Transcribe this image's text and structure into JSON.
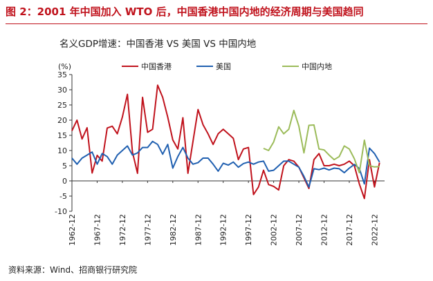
{
  "figure": {
    "title": "图 2：2001 年中国加入 WTO 后，中国香港中国内地的经济周期与美国趋同",
    "source": "资料来源：Wind、招商银行研究院"
  },
  "colors": {
    "title": "#c0121c",
    "hk": "#c0121c",
    "us": "#1f5fb0",
    "cn": "#9bbb59",
    "axis": "#333333"
  },
  "chart_data": {
    "type": "line",
    "title": "名义GDP增速：中国香港 VS 美国 VS 中国内地",
    "ylabel": "(%)",
    "ylim": [
      -10,
      35
    ],
    "yticks": [
      "-10",
      "-5",
      "0",
      "5",
      "10",
      "15",
      "20",
      "25",
      "30",
      "35"
    ],
    "xlim": [
      1962,
      2024
    ],
    "xtick_labels": [
      "1962-12",
      "1967-12",
      "1972-12",
      "1977-12",
      "1982-12",
      "1987-12",
      "1992-12",
      "1997-12",
      "2002-12",
      "2007-12",
      "2012-12",
      "2017-12",
      "2022-12"
    ],
    "grid": false,
    "legend": "top",
    "series": [
      {
        "name": "中国香港",
        "color": "#c0121c",
        "x": [
          1962,
          1963,
          1964,
          1965,
          1966,
          1967,
          1968,
          1969,
          1970,
          1971,
          1972,
          1973,
          1974,
          1975,
          1976,
          1977,
          1978,
          1979,
          1980,
          1981,
          1982,
          1983,
          1984,
          1985,
          1986,
          1987,
          1988,
          1989,
          1990,
          1991,
          1992,
          1993,
          1994,
          1995,
          1996,
          1997,
          1998,
          1999,
          2000,
          2001,
          2002,
          2003,
          2004,
          2005,
          2006,
          2007,
          2008,
          2009,
          2010,
          2011,
          2012,
          2013,
          2014,
          2015,
          2016,
          2017,
          2018,
          2019,
          2020,
          2021,
          2022,
          2023
        ],
        "y": [
          16.5,
          20,
          13.8,
          17.5,
          2.6,
          8.4,
          6.5,
          17.4,
          18,
          15.5,
          21,
          28.5,
          9.5,
          2.5,
          27.5,
          16,
          17,
          31.5,
          27.5,
          21,
          13.5,
          10.5,
          20.8,
          2.5,
          13,
          23.5,
          18.5,
          15.5,
          12,
          15.5,
          17,
          15.5,
          14,
          7,
          10.5,
          11,
          -4.5,
          -2,
          3.5,
          -1.2,
          -1.8,
          -3,
          5,
          7,
          6.5,
          4.5,
          1,
          -2.5,
          7,
          9,
          5,
          5,
          5.5,
          5,
          5.5,
          6.5,
          5,
          -1,
          -5.8,
          7,
          -2,
          6
        ]
      },
      {
        "name": "美国",
        "color": "#1f5fb0",
        "x": [
          1962,
          1963,
          1964,
          1965,
          1966,
          1967,
          1968,
          1969,
          1970,
          1971,
          1972,
          1973,
          1974,
          1975,
          1976,
          1977,
          1978,
          1979,
          1980,
          1981,
          1982,
          1983,
          1984,
          1985,
          1986,
          1987,
          1988,
          1989,
          1990,
          1991,
          1992,
          1993,
          1994,
          1995,
          1996,
          1997,
          1998,
          1999,
          2000,
          2001,
          2002,
          2003,
          2004,
          2005,
          2006,
          2007,
          2008,
          2009,
          2010,
          2011,
          2012,
          2013,
          2014,
          2015,
          2016,
          2017,
          2018,
          2019,
          2020,
          2021,
          2022,
          2023
        ],
        "y": [
          7.5,
          5.5,
          7.5,
          8.5,
          9.5,
          5.5,
          9,
          8,
          5.5,
          8.5,
          10,
          11.5,
          8.5,
          9.2,
          11,
          11,
          13,
          12,
          8.8,
          12,
          4.2,
          8,
          11,
          7.5,
          5.5,
          6,
          7.5,
          7.5,
          5.5,
          3.2,
          5.8,
          5.2,
          6.2,
          4.5,
          5.7,
          6.2,
          5.5,
          6.2,
          6.5,
          3.2,
          3.5,
          5,
          6.5,
          6.5,
          5.5,
          4.5,
          1.5,
          -2,
          4,
          3.7,
          4.2,
          3.6,
          4.2,
          4,
          2.7,
          4.2,
          5.4,
          4.1,
          -1,
          10.8,
          9,
          6.2
        ]
      },
      {
        "name": "中国内地",
        "color": "#9bbb59",
        "x": [
          2000,
          2001,
          2002,
          2003,
          2004,
          2005,
          2006,
          2007,
          2008,
          2009,
          2010,
          2011,
          2012,
          2013,
          2014,
          2015,
          2016,
          2017,
          2018,
          2019,
          2020,
          2021,
          2022,
          2023
        ],
        "y": [
          10.7,
          10,
          12.8,
          17.8,
          15.5,
          17,
          23.2,
          18,
          9.2,
          18.3,
          18.4,
          10.5,
          10.2,
          8.5,
          7,
          8,
          11.5,
          10.5,
          7.3,
          2.7,
          13.4,
          5,
          4.6,
          4.7
        ]
      }
    ]
  }
}
